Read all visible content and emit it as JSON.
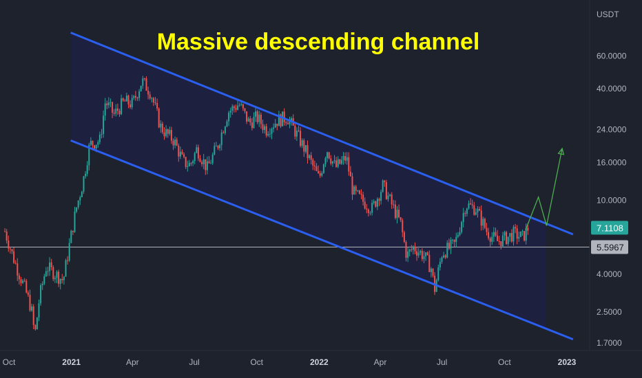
{
  "chart_data": {
    "type": "candlestick",
    "title": "Massive descending channel",
    "y_unit": "USDT",
    "y_scale": "log",
    "ylim": [
      1.55,
      120
    ],
    "y_ticks": [
      {
        "value": 60,
        "label": "60.0000"
      },
      {
        "value": 40,
        "label": "40.0000"
      },
      {
        "value": 24,
        "label": "24.0000"
      },
      {
        "value": 16,
        "label": "16.0000"
      },
      {
        "value": 10,
        "label": "10.0000"
      },
      {
        "value": 4,
        "label": "4.0000"
      },
      {
        "value": 2.5,
        "label": "2.5000"
      },
      {
        "value": 1.7,
        "label": "1.7000"
      }
    ],
    "x_ticks": [
      {
        "date": "2020-10-01",
        "label": "Oct",
        "major": false
      },
      {
        "date": "2021-01-01",
        "label": "2021",
        "major": true
      },
      {
        "date": "2021-04-01",
        "label": "Apr",
        "major": false
      },
      {
        "date": "2021-07-01",
        "label": "Jul",
        "major": false
      },
      {
        "date": "2021-10-01",
        "label": "Oct",
        "major": false
      },
      {
        "date": "2022-01-01",
        "label": "2022",
        "major": true
      },
      {
        "date": "2022-04-01",
        "label": "Apr",
        "major": false
      },
      {
        "date": "2022-07-01",
        "label": "Jul",
        "major": false
      },
      {
        "date": "2022-10-01",
        "label": "Oct",
        "major": false
      },
      {
        "date": "2023-01-01",
        "label": "2023",
        "major": true
      }
    ],
    "price_path": [
      [
        "2020-09-25",
        6.8
      ],
      [
        "2020-10-10",
        4.6
      ],
      [
        "2020-10-25",
        3.3
      ],
      [
        "2020-11-03",
        2.6
      ],
      [
        "2020-11-08",
        1.85
      ],
      [
        "2020-11-15",
        3.0
      ],
      [
        "2020-11-25",
        4.4
      ],
      [
        "2020-12-05",
        4.1
      ],
      [
        "2020-12-20",
        3.7
      ],
      [
        "2020-12-30",
        6.0
      ],
      [
        "2021-01-08",
        9.0
      ],
      [
        "2021-01-18",
        12.5
      ],
      [
        "2021-01-28",
        20
      ],
      [
        "2021-02-12",
        21
      ],
      [
        "2021-02-20",
        34
      ],
      [
        "2021-03-05",
        29
      ],
      [
        "2021-03-20",
        34
      ],
      [
        "2021-04-01",
        33
      ],
      [
        "2021-04-15",
        44
      ],
      [
        "2021-04-28",
        38
      ],
      [
        "2021-05-12",
        25
      ],
      [
        "2021-05-20",
        23
      ],
      [
        "2021-06-01",
        21
      ],
      [
        "2021-06-15",
        16
      ],
      [
        "2021-06-25",
        15.5
      ],
      [
        "2021-07-05",
        19
      ],
      [
        "2021-07-20",
        14.8
      ],
      [
        "2021-08-05",
        20
      ],
      [
        "2021-08-20",
        30
      ],
      [
        "2021-09-05",
        33
      ],
      [
        "2021-09-20",
        26
      ],
      [
        "2021-10-01",
        28
      ],
      [
        "2021-10-15",
        24
      ],
      [
        "2021-11-01",
        27
      ],
      [
        "2021-11-15",
        28
      ],
      [
        "2021-12-01",
        22
      ],
      [
        "2021-12-10",
        19
      ],
      [
        "2022-01-01",
        13
      ],
      [
        "2022-01-12",
        19
      ],
      [
        "2022-01-25",
        15
      ],
      [
        "2022-02-10",
        17
      ],
      [
        "2022-02-20",
        11
      ],
      [
        "2022-03-05",
        10
      ],
      [
        "2022-03-20",
        9
      ],
      [
        "2022-04-05",
        12
      ],
      [
        "2022-04-15",
        10
      ],
      [
        "2022-05-01",
        7.5
      ],
      [
        "2022-05-10",
        5.0
      ],
      [
        "2022-05-20",
        5.6
      ],
      [
        "2022-06-05",
        5.0
      ],
      [
        "2022-06-15",
        4.3
      ],
      [
        "2022-06-20",
        3.3
      ],
      [
        "2022-07-01",
        5.2
      ],
      [
        "2022-07-20",
        5.8
      ],
      [
        "2022-08-05",
        9.5
      ],
      [
        "2022-08-20",
        9.0
      ],
      [
        "2022-09-05",
        6.8
      ],
      [
        "2022-09-20",
        6.0
      ],
      [
        "2022-10-01",
        6.2
      ],
      [
        "2022-10-15",
        6.6
      ],
      [
        "2022-10-28",
        6.3
      ],
      [
        "2022-11-05",
        7.1
      ]
    ],
    "channel_upper": [
      [
        "2020-12-31",
        80
      ],
      [
        "2023-01-10",
        6.55
      ]
    ],
    "channel_lower": [
      [
        "2020-12-31",
        21
      ],
      [
        "2023-01-10",
        1.78
      ]
    ],
    "projection": [
      [
        "2022-11-01",
        6.9
      ],
      [
        "2022-11-20",
        10.4
      ],
      [
        "2022-12-02",
        7.3
      ],
      [
        "2022-12-25",
        19
      ]
    ],
    "horizontal_line": 5.5967,
    "current_price": {
      "value": 7.1108,
      "label": "7.1108"
    },
    "line_badge": {
      "value": 5.5967,
      "label": "5.5967"
    },
    "colors": {
      "background": "#1e222d",
      "channel_fill": "#1f2140",
      "channel_line": "#2a5ff0",
      "up": "#26a69a",
      "down": "#ef5350",
      "projection": "#4caf50",
      "title": "#ffff00",
      "horizontal_line": "#b2b5be",
      "price_badge": "#26a69a"
    }
  }
}
